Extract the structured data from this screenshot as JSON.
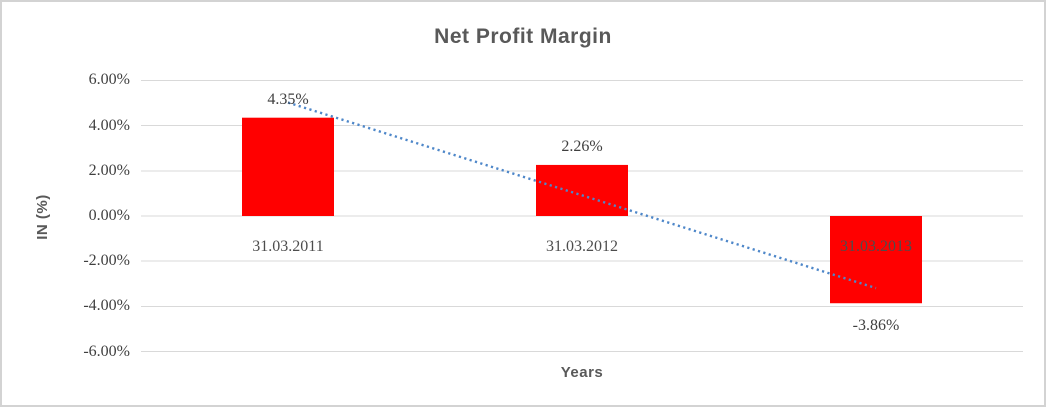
{
  "chart_data": {
    "type": "bar",
    "title": "Net Profit Margin",
    "xlabel": "Years",
    "ylabel": "IN (%)",
    "categories": [
      "31.03.2011",
      "31.03.2012",
      "31.03.2013"
    ],
    "values": [
      4.35,
      2.26,
      -3.86
    ],
    "data_labels": [
      "4.35%",
      "2.26%",
      "-3.86%"
    ],
    "y_ticks": [
      {
        "value": 6,
        "label": "6.00%"
      },
      {
        "value": 4,
        "label": "4.00%"
      },
      {
        "value": 2,
        "label": "2.00%"
      },
      {
        "value": 0,
        "label": "0.00%"
      },
      {
        "value": -2,
        "label": "-2.00%"
      },
      {
        "value": -4,
        "label": "-4.00%"
      },
      {
        "value": -6,
        "label": "-6.00%"
      }
    ],
    "ylim": [
      -6,
      6
    ],
    "grid": true,
    "legend": false,
    "series_color": "#FF0000",
    "trendline": {
      "type": "linear",
      "style": "dotted",
      "color": "#4E87C9",
      "start_value": 5.02,
      "end_value": -3.19
    },
    "colors": {
      "title": "#595959",
      "axis_title": "#595959",
      "tick_label": "#3F3F3F",
      "data_label": "#3F3F3F",
      "category_label": "#4D4D4D",
      "gridline": "#D9D9D9",
      "background": "#FFFFFF",
      "frame_border": "#D3D3D3"
    }
  }
}
